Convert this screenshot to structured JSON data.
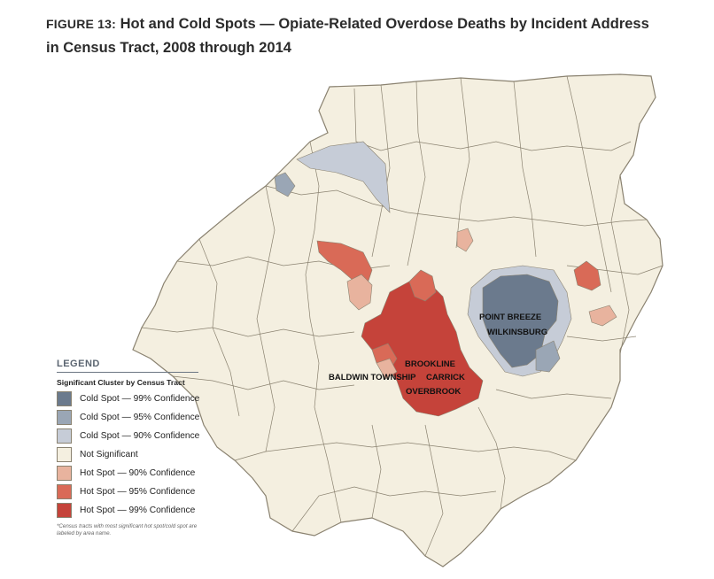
{
  "figure": {
    "number": "FIGURE 13:",
    "title_line1": "Hot and Cold Spots — Opiate-Related Overdose Deaths by Incident Address",
    "title_line2": "in Census Tract, 2008 through 2014"
  },
  "colors": {
    "cold_99": "#6b7a8d",
    "cold_95": "#9aa6b5",
    "cold_90": "#c6ccd7",
    "not_significant": "#f4efe0",
    "hot_90": "#e8b39e",
    "hot_95": "#d96a57",
    "hot_99": "#c5433a",
    "border": "#8a8270"
  },
  "map_labels": [
    {
      "id": "point-breeze",
      "text": "POINT BREEZE"
    },
    {
      "id": "wilkinsburg",
      "text": "WILKINSBURG"
    },
    {
      "id": "brookline",
      "text": "BROOKLINE"
    },
    {
      "id": "baldwin-township",
      "text": "BALDWIN TOWNSHIP"
    },
    {
      "id": "carrick",
      "text": "CARRICK"
    },
    {
      "id": "overbrook",
      "text": "OVERBROOK"
    }
  ],
  "legend": {
    "heading": "LEGEND",
    "subheading": "Significant Cluster by Census Tract",
    "items": [
      {
        "label": "Cold Spot — 99% Confidence",
        "color": "#6b7a8d"
      },
      {
        "label": "Cold Spot — 95% Confidence",
        "color": "#9aa6b5"
      },
      {
        "label": "Cold Spot — 90% Confidence",
        "color": "#c6ccd7"
      },
      {
        "label": "Not Significant",
        "color": "#f4efe0"
      },
      {
        "label": "Hot Spot — 90% Confidence",
        "color": "#e8b39e"
      },
      {
        "label": "Hot Spot — 95% Confidence",
        "color": "#d96a57"
      },
      {
        "label": "Hot Spot — 99% Confidence",
        "color": "#c5433a"
      }
    ],
    "note": "*Census tracts with most significant hot spot/cold spot are labeled by area name."
  }
}
